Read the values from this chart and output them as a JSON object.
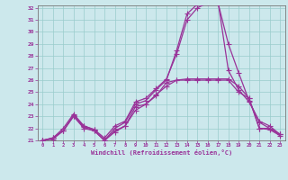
{
  "xlabel": "Windchill (Refroidissement éolien,°C)",
  "xlim": [
    -0.5,
    23.5
  ],
  "ylim": [
    21,
    32.2
  ],
  "yticks": [
    21,
    22,
    23,
    24,
    25,
    26,
    27,
    28,
    29,
    30,
    31,
    32
  ],
  "xticks": [
    0,
    1,
    2,
    3,
    4,
    5,
    6,
    7,
    8,
    9,
    10,
    11,
    12,
    13,
    14,
    15,
    16,
    17,
    18,
    19,
    20,
    21,
    22,
    23
  ],
  "background_color": "#cce8ec",
  "grid_color": "#99cccc",
  "line_color": "#993399",
  "line_width": 0.9,
  "marker": "+",
  "marker_size": 4,
  "series": [
    [
      21.0,
      21.2,
      21.8,
      23.0,
      22.1,
      21.8,
      21.0,
      21.8,
      22.2,
      23.5,
      24.0,
      24.8,
      25.5,
      26.0,
      26.1,
      26.1,
      26.1,
      26.1,
      26.1,
      25.5,
      24.5,
      22.0,
      22.0,
      21.5
    ],
    [
      21.0,
      21.2,
      21.8,
      23.1,
      22.2,
      21.9,
      21.2,
      22.2,
      22.6,
      24.2,
      24.5,
      25.3,
      26.1,
      28.2,
      31.0,
      32.0,
      32.4,
      32.5,
      26.8,
      25.2,
      24.2,
      22.6,
      22.2,
      21.5
    ],
    [
      21.0,
      21.2,
      22.0,
      23.2,
      22.2,
      21.9,
      21.0,
      22.0,
      22.5,
      24.0,
      24.3,
      25.2,
      26.0,
      28.5,
      31.5,
      32.3,
      32.6,
      32.4,
      29.0,
      26.6,
      24.3,
      22.5,
      22.0,
      21.5
    ],
    [
      21.0,
      21.1,
      21.8,
      23.0,
      22.0,
      21.8,
      21.0,
      21.7,
      22.2,
      23.8,
      24.0,
      24.7,
      25.8,
      26.0,
      26.0,
      26.0,
      26.0,
      26.0,
      26.0,
      25.0,
      24.5,
      22.0,
      21.9,
      21.4
    ]
  ]
}
